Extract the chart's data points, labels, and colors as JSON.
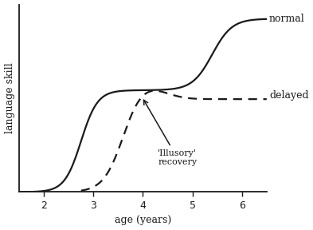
{
  "xlabel": "age (years)",
  "ylabel": "language skill",
  "xlim": [
    1.5,
    6.5
  ],
  "ylim": [
    0.0,
    1.05
  ],
  "xticks": [
    2,
    3,
    4,
    5,
    6
  ],
  "normal_label": "normal",
  "delayed_label": "delayed",
  "annotation_text": "'Illusory'\nrecovery",
  "bg_color": "#ffffff",
  "line_color": "#1a1a1a"
}
